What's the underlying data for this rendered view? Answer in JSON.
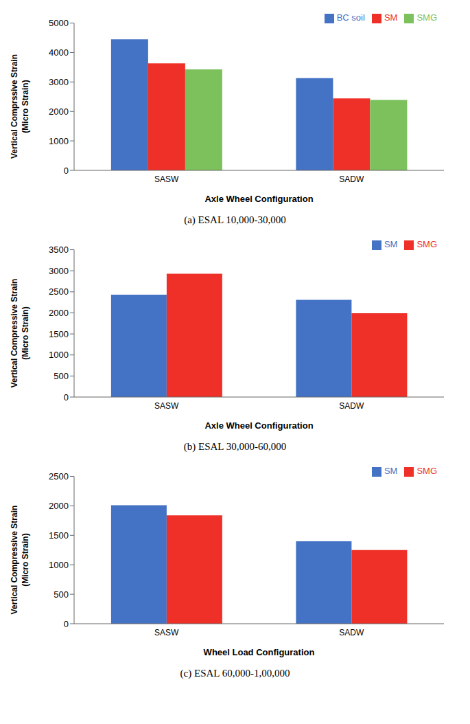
{
  "chart_data": [
    {
      "type": "bar",
      "title": "(a)  ESAL 10,000-30,000",
      "x_label": "Axle Wheel Configuration",
      "y_label": "Vertical Comprssive Strain (Micro Strain)",
      "categories": [
        "SASW",
        "SADW"
      ],
      "series": [
        {
          "name": "BC soil",
          "color": "#4472c4",
          "values": [
            4450,
            3130
          ]
        },
        {
          "name": "SM",
          "color": "#ee3029",
          "values": [
            3630,
            2440
          ]
        },
        {
          "name": "SMG",
          "color": "#7dc15c",
          "values": [
            3430,
            2390
          ]
        }
      ],
      "ylim": [
        0,
        5000
      ],
      "yticks": [
        0,
        1000,
        2000,
        3000,
        4000,
        5000
      ],
      "legend": "upper right"
    },
    {
      "type": "bar",
      "title": "(b) ESAL 30,000-60,000",
      "x_label": "Axle Wheel Configuration",
      "y_label": "Vertical Compressive Strain (Micro Strain)",
      "categories": [
        "SASW",
        "SADW"
      ],
      "series": [
        {
          "name": "SM",
          "color": "#4472c4",
          "values": [
            2430,
            2310
          ]
        },
        {
          "name": "SMG",
          "color": "#ee3029",
          "values": [
            2930,
            1990
          ]
        }
      ],
      "ylim": [
        0,
        3500
      ],
      "yticks": [
        0,
        500,
        1000,
        1500,
        2000,
        2500,
        3000,
        3500
      ],
      "legend": "upper right"
    },
    {
      "type": "bar",
      "title": "(c) ESAL 60,000-1,00,000",
      "x_label": "Wheel Load Configuration",
      "y_label": "Vertical Compressive Strain (Micro Strain)",
      "categories": [
        "SASW",
        "SADW"
      ],
      "series": [
        {
          "name": "SM",
          "color": "#4472c4",
          "values": [
            2010,
            1400
          ]
        },
        {
          "name": "SMG",
          "color": "#ee3029",
          "values": [
            1840,
            1250
          ]
        }
      ],
      "ylim": [
        0,
        2500
      ],
      "yticks": [
        0,
        500,
        1000,
        1500,
        2000,
        2500
      ],
      "legend": "upper right"
    }
  ]
}
